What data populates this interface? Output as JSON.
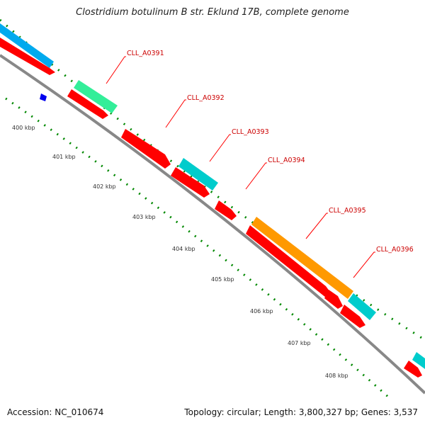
{
  "title": "Clostridium botulinum B str. Eklund 17B, complete genome",
  "footer": {
    "accession": "Accession: NC_010674",
    "summary": "Topology: circular; Length: 3,800,327 bp; Genes: 3,537"
  },
  "ruler": {
    "labels": [
      "400 kbp",
      "401 kbp",
      "402 kbp",
      "403 kbp",
      "404 kbp",
      "405 kbp",
      "406 kbp",
      "407 kbp",
      "408 kbp"
    ]
  },
  "genes": [
    {
      "label": "CLL_A0391"
    },
    {
      "label": "CLL_A0392"
    },
    {
      "label": "CLL_A0393"
    },
    {
      "label": "CLL_A0394"
    },
    {
      "label": "CLL_A0395"
    },
    {
      "label": "CLL_A0396"
    }
  ],
  "colors": {
    "cds": "#ff0000",
    "cds_alt": "#00cccc",
    "cds_green": "#33ee99",
    "cds_orange": "#ff9900",
    "cds_blue": "#00aaee",
    "backbone": "#888888",
    "ticks": "#008800",
    "label_line": "#ff0000",
    "label_text": "#cc0000",
    "marker": "#0000ee"
  }
}
